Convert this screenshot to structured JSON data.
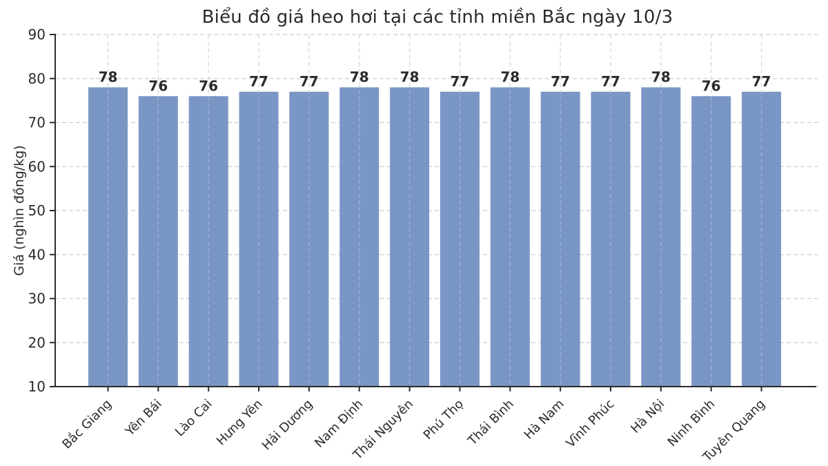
{
  "figure": {
    "background": "#ffffff"
  },
  "chart_data": {
    "type": "bar",
    "title": "Biểu đồ giá heo hơi tại các tỉnh miền Bắc ngày 10/3",
    "xlabel": "",
    "ylabel": "Giá (nghìn đồng/kg)",
    "categories": [
      "Bắc Giang",
      "Yên Bái",
      "Lào Cai",
      "Hưng Yên",
      "Hải Dương",
      "Nam Định",
      "Thái Nguyên",
      "Phú Thọ",
      "Thái Bình",
      "Hà Nam",
      "Vĩnh Phúc",
      "Hà Nội",
      "Ninh Bình",
      "Tuyên Quang"
    ],
    "values": [
      78,
      76,
      76,
      77,
      77,
      78,
      78,
      77,
      78,
      77,
      77,
      78,
      76,
      77
    ],
    "bar_value_labels": [
      "78",
      "76",
      "76",
      "77",
      "77",
      "78",
      "78",
      "77",
      "78",
      "77",
      "77",
      "78",
      "76",
      "77"
    ],
    "ylim": [
      10,
      90
    ],
    "yticks": [
      10,
      20,
      30,
      40,
      50,
      60,
      70,
      80,
      90
    ],
    "grid": true,
    "grid_style": "dashed",
    "x_tick_rotation_deg": 45,
    "legend": "none",
    "colors": {
      "bar": "#7a96c5",
      "axis": "#2a2a2a",
      "grid": "#cdcdcd",
      "value_label": "#2a2a2a",
      "title": "#2a2a2a"
    }
  }
}
